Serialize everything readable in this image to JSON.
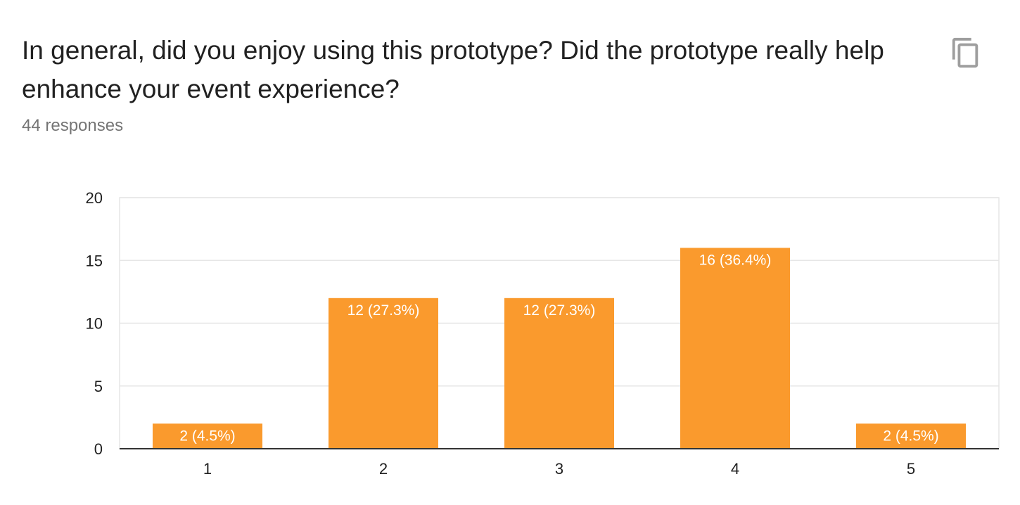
{
  "question": {
    "title": "In general, did you enjoy using this prototype? Did the prototype really help enhance your event experience?",
    "response_count": "44 responses",
    "copy_icon": "copy-icon"
  },
  "colors": {
    "bar": "#fa9a2d",
    "bar_label": "#ffffff",
    "grid": "#e6e6e6",
    "baseline": "#333333",
    "text": "#212121",
    "subtle_text": "#757575"
  },
  "chart_data": {
    "type": "bar",
    "categories": [
      "1",
      "2",
      "3",
      "4",
      "5"
    ],
    "values": [
      2,
      12,
      12,
      16,
      2
    ],
    "data_labels": [
      "2 (4.5%)",
      "12 (27.3%)",
      "12 (27.3%)",
      "16 (36.4%)",
      "2 (4.5%)"
    ],
    "y_ticks": [
      "0",
      "5",
      "10",
      "15",
      "20"
    ],
    "ylim": [
      0,
      20
    ],
    "xlabel": "",
    "ylabel": "",
    "grid": true,
    "legend": "none"
  }
}
